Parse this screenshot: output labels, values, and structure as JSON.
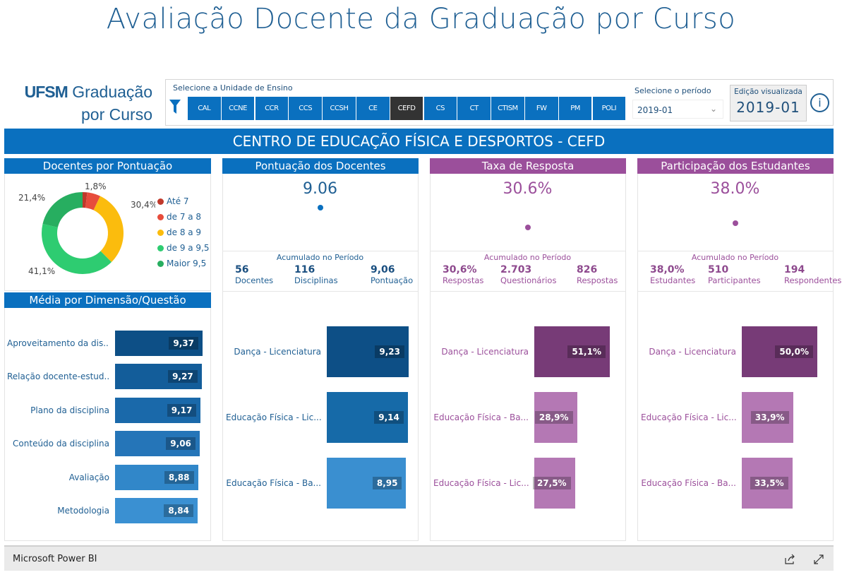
{
  "title": "Avaliação Docente da Graduação por Curso",
  "logo": {
    "brand": "UFSM",
    "line1": "Graduação",
    "line2": "por Curso"
  },
  "filter": {
    "unit_label": "Selecione a Unidade de Ensino",
    "units": [
      "CAL",
      "CCNE",
      "CCR",
      "CCS",
      "CCSH",
      "CE",
      "CEFD",
      "CS",
      "CT",
      "CTISM",
      "FW",
      "PM",
      "POLI"
    ],
    "selected_unit": "CEFD",
    "period_label": "Selecione o período",
    "period_value": "2019-01",
    "edicao_label": "Edição visualizada",
    "edicao_value": "2019-01",
    "info_icon": "i"
  },
  "banner": "CENTRO DE EDUCAÇÃO FÍSICA E DESPORTOS - CEFD",
  "donut": {
    "title": "Docentes por Pontuação",
    "segments": [
      {
        "label": "Até 7",
        "value": 1.8,
        "text": "1,8%",
        "color": "#c0392b"
      },
      {
        "label": "de 7 a 8",
        "value": 5.3,
        "text": "",
        "color": "#e74c3c"
      },
      {
        "label": "de 8 a 9",
        "value": 30.4,
        "text": "30,4%",
        "color": "#fbbc0d"
      },
      {
        "label": "de 9 a 9,5",
        "value": 41.1,
        "text": "41,1%",
        "color": "#2ecc71"
      },
      {
        "label": "Maior 9,5",
        "value": 21.4,
        "text": "21,4%",
        "color": "#27ae60"
      }
    ]
  },
  "dimensao": {
    "title": "Média por Dimensão/Questão",
    "max": 9.37,
    "items": [
      {
        "label": "Aproveitamento da dis...",
        "value": 9.37,
        "text": "9,37",
        "color": "#0d4f86"
      },
      {
        "label": "Relação docente-estud...",
        "value": 9.27,
        "text": "9,27",
        "color": "#135d9a"
      },
      {
        "label": "Plano da disciplina",
        "value": 9.17,
        "text": "9,17",
        "color": "#1a69aa"
      },
      {
        "label": "Conteúdo da disciplina",
        "value": 9.06,
        "text": "9,06",
        "color": "#2575b8"
      },
      {
        "label": "Avaliação",
        "value": 8.88,
        "text": "8,88",
        "color": "#3187c9"
      },
      {
        "label": "Metodologia",
        "value": 8.84,
        "text": "8,84",
        "color": "#3a90d2"
      }
    ]
  },
  "cards": [
    {
      "title": "Pontuação dos Docentes",
      "big": "9.06",
      "acc": "Acumulado no Período",
      "theme": "#0a70bf",
      "text": "#1f5f93",
      "strong": "#1a4f80",
      "stats": [
        {
          "v": "56",
          "l": "Docentes"
        },
        {
          "v": "116",
          "l": "Disciplinas"
        },
        {
          "v": "9,06",
          "l": "Pontuação"
        }
      ],
      "max": 9.23,
      "bars": [
        {
          "label": "Dança - Licenciatura",
          "value": 9.23,
          "text": "9,23",
          "color": "#0d4f86"
        },
        {
          "label": "Educação Física - Lic...",
          "value": 9.14,
          "text": "9,14",
          "color": "#166aa8"
        },
        {
          "label": "Educação Física - Ba...",
          "value": 8.95,
          "text": "8,95",
          "color": "#3a8fd0"
        }
      ]
    },
    {
      "title": "Taxa de Resposta",
      "big": "30.6%",
      "acc": "Acumulado no Período",
      "theme": "#9b4f9b",
      "text": "#9b4f9b",
      "strong": "#8e4a8e",
      "stats": [
        {
          "v": "30,6%",
          "l": "Respostas"
        },
        {
          "v": "2.703",
          "l": "Questionários"
        },
        {
          "v": "826",
          "l": "Respostas"
        }
      ],
      "max": 51.1,
      "bars": [
        {
          "label": "Dança - Licenciatura",
          "value": 51.1,
          "text": "51,1%",
          "color": "#773b77"
        },
        {
          "label": "Educação Física - Ba...",
          "value": 28.9,
          "text": "28,9%",
          "color": "#b478b4"
        },
        {
          "label": "Educação Física - Lic...",
          "value": 27.5,
          "text": "27,5%",
          "color": "#b478b4"
        }
      ]
    },
    {
      "title": "Participação dos Estudantes",
      "big": "38.0%",
      "acc": "Acumulado no Período",
      "theme": "#9b4f9b",
      "text": "#9b4f9b",
      "strong": "#8e4a8e",
      "stats": [
        {
          "v": "38,0%",
          "l": "Estudantes"
        },
        {
          "v": "510",
          "l": "Participantes"
        },
        {
          "v": "194",
          "l": "Respondentes"
        }
      ],
      "max": 50.0,
      "bars": [
        {
          "label": "Dança - Licenciatura",
          "value": 50.0,
          "text": "50,0%",
          "color": "#773b77"
        },
        {
          "label": "Educação Física - Lic...",
          "value": 33.9,
          "text": "33,9%",
          "color": "#b478b4"
        },
        {
          "label": "Educação Física - Ba...",
          "value": 33.5,
          "text": "33,5%",
          "color": "#b478b4"
        }
      ]
    }
  ],
  "footer": {
    "brand": "Microsoft Power BI"
  }
}
